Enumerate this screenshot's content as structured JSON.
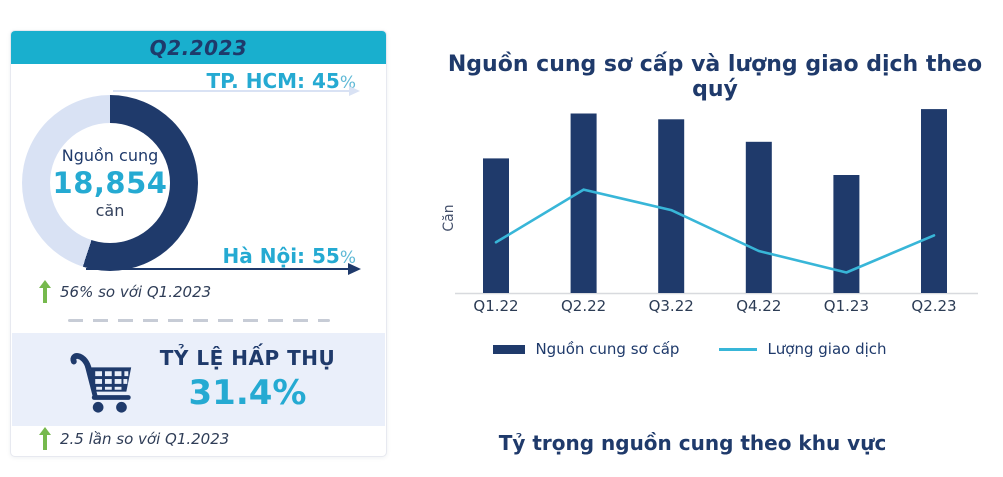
{
  "card": {
    "period": "Q2.2023",
    "hcm": {
      "label_value": "TP. HCM: 45",
      "sign": "%"
    },
    "hanoi": {
      "label_value": "Hà Nội: 55",
      "sign": "%"
    },
    "donut": {
      "title": "Nguồn cung",
      "value": "18,854",
      "unit": "căn",
      "hanoi_pct": 55,
      "hcm_pct": 45,
      "color_hanoi": "#1f3a6b",
      "color_hcm": "#d9e2f4"
    },
    "supply_growth": "56% so với Q1.2023",
    "absorption": {
      "label": "TỶ LỆ HẤP THỤ",
      "value": "31.4%",
      "growth": "2.5 lần so với Q1.2023"
    }
  },
  "chart_data": {
    "type": "bar+line",
    "title": "Nguồn cung sơ cấp và lượng giao dịch theo quý",
    "ylabel": "Căn",
    "categories": [
      "Q1.22",
      "Q2.22",
      "Q3.22",
      "Q4.22",
      "Q1.23",
      "Q2.23"
    ],
    "series": [
      {
        "name": "Nguồn cung sơ cấp",
        "type": "bar",
        "color": "#1f3a6b",
        "values": [
          13800,
          18400,
          17800,
          15500,
          12100,
          18854
        ]
      },
      {
        "name": "Lượng giao dịch",
        "type": "line",
        "color": "#38b6d8",
        "values": [
          5200,
          10600,
          8500,
          4300,
          2100,
          5900
        ]
      }
    ],
    "ylim": [
      0,
      20500
    ],
    "grid": false,
    "legend_position": "bottom",
    "values_note": "values estimated from bar/line heights; Q2.23 bar anchored to 18,854 căn shown on card"
  },
  "bottom_title": "Tỷ trọng nguồn cung theo khu vực",
  "colors": {
    "navy": "#1f3a6b",
    "teal_header": "#19afce",
    "teal_text": "#25aad2",
    "lavender": "#d9e2f4",
    "panel_blue": "#eaeffa",
    "green": "#76b94d",
    "axis_gray": "#d8dade",
    "dash_gray": "#c7ccd6"
  }
}
